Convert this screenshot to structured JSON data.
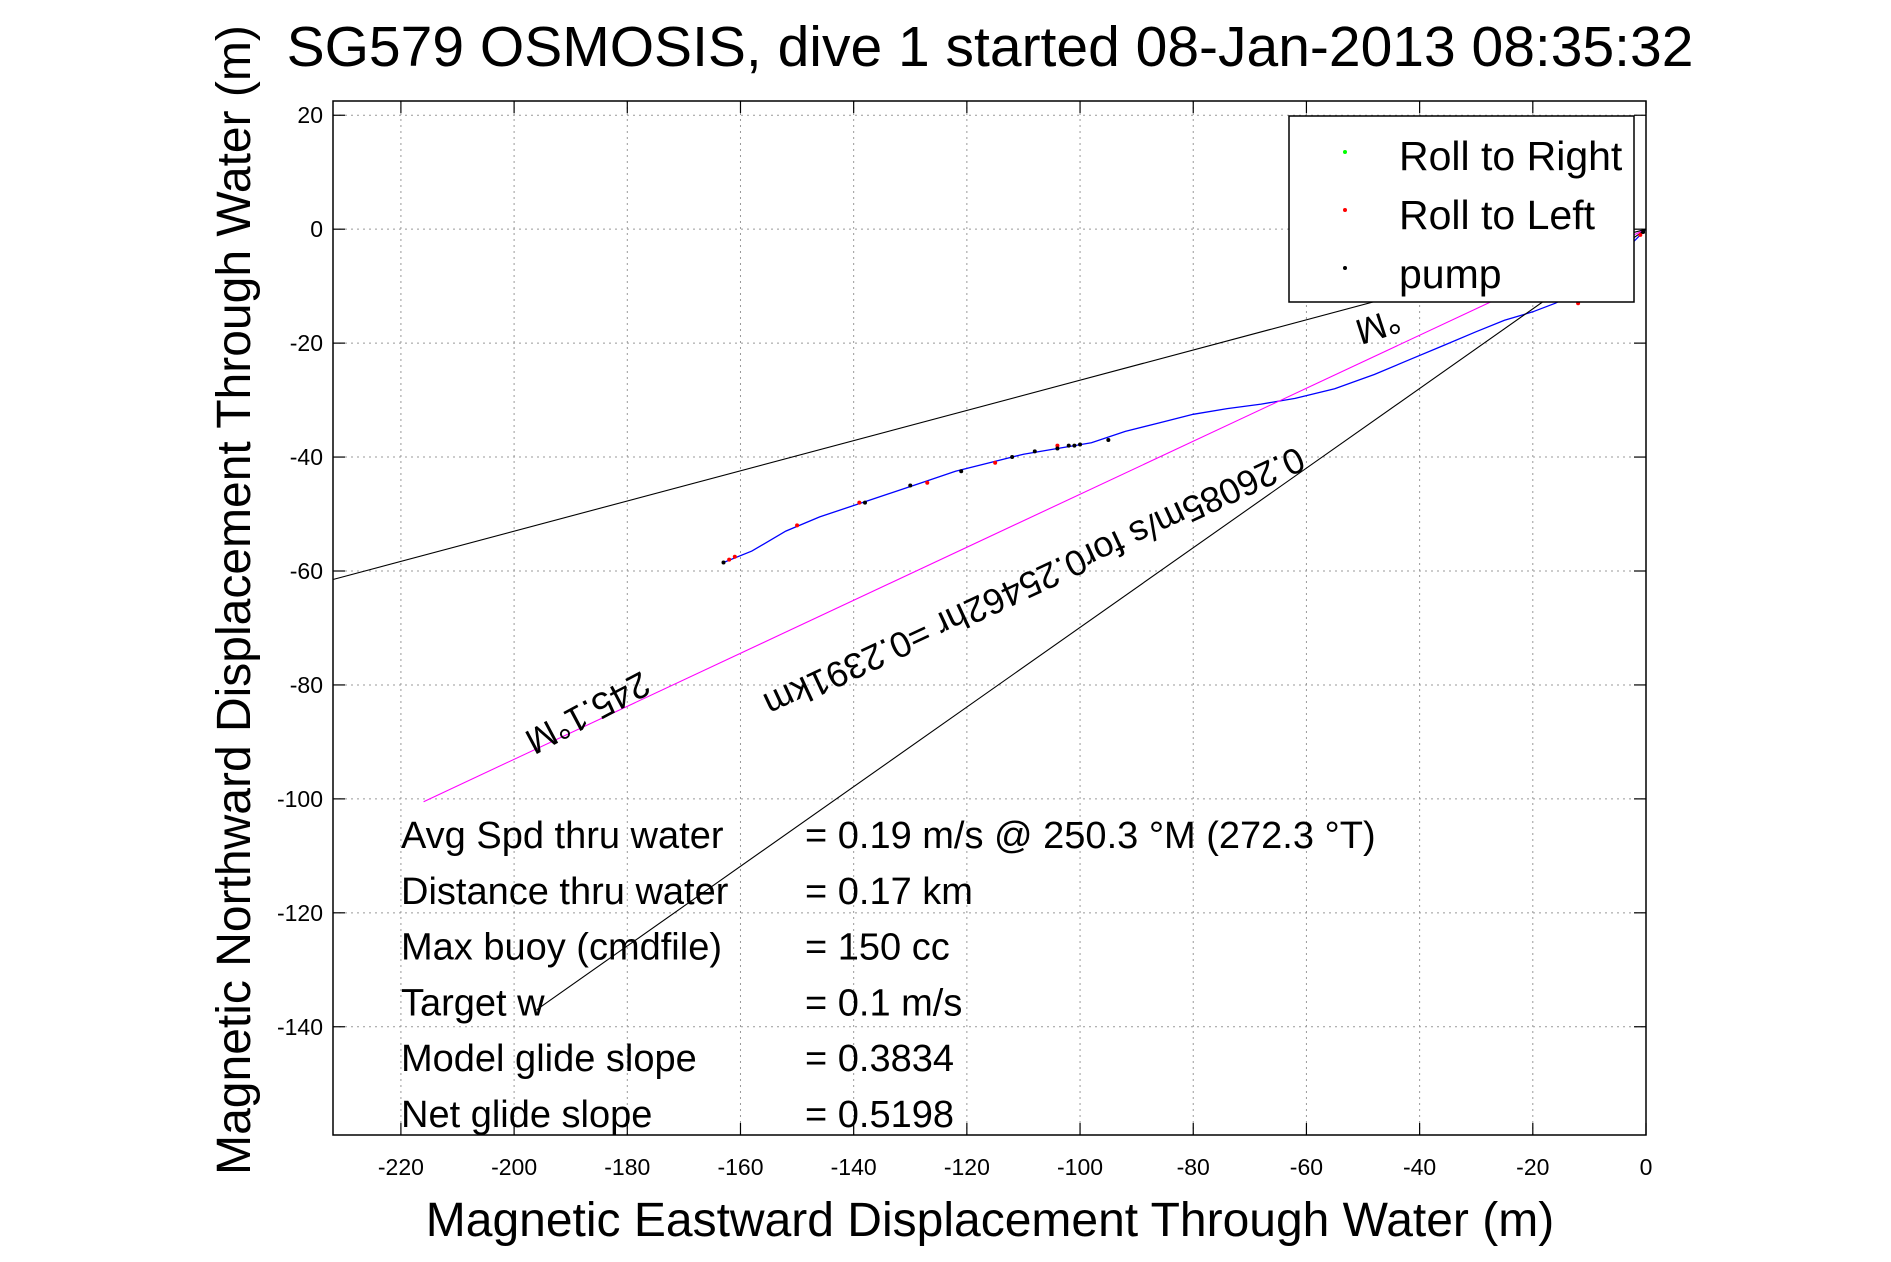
{
  "chart_data": {
    "type": "line",
    "title": "SG579 OSMOSIS, dive 1 started 08-Jan-2013 08:35:32",
    "xlabel": "Magnetic Eastward Displacement Through Water (m)",
    "ylabel": "Magnetic Northward Displacement Through Water (m)",
    "xlim": [
      -232,
      0
    ],
    "ylim": [
      -159,
      22.5
    ],
    "xticks": [
      -220,
      -200,
      -180,
      -160,
      -140,
      -120,
      -100,
      -80,
      -60,
      -40,
      -20,
      0
    ],
    "yticks": [
      20,
      0,
      -20,
      -40,
      -60,
      -80,
      -100,
      -120,
      -140
    ],
    "grid": true,
    "legend_position": "top-right",
    "legend": [
      {
        "label": "Roll to Right",
        "color": "#00ff00"
      },
      {
        "label": "Roll to Left",
        "color": "#ff0000"
      },
      {
        "label": "pump",
        "color": "#000000"
      }
    ],
    "series": [
      {
        "style": "track",
        "color": "#0000ff",
        "points": [
          [
            0,
            0
          ],
          [
            -2,
            -2
          ],
          [
            -4,
            -4
          ],
          [
            -6,
            -6
          ],
          [
            -9,
            -8.5
          ],
          [
            -12,
            -11
          ],
          [
            -16,
            -13
          ],
          [
            -20,
            -14.5
          ],
          [
            -25,
            -16
          ],
          [
            -30,
            -18
          ],
          [
            -36,
            -20.5
          ],
          [
            -42,
            -23
          ],
          [
            -48,
            -25.5
          ],
          [
            -55,
            -28
          ],
          [
            -62,
            -29.7
          ],
          [
            -68,
            -30.7
          ],
          [
            -74,
            -31.5
          ],
          [
            -80,
            -32.5
          ],
          [
            -86,
            -34
          ],
          [
            -92,
            -35.5
          ],
          [
            -98,
            -37.5
          ],
          [
            -104,
            -38.5
          ],
          [
            -110,
            -39.5
          ],
          [
            -116,
            -41
          ],
          [
            -122,
            -42.5
          ],
          [
            -128,
            -44.5
          ],
          [
            -134,
            -46.5
          ],
          [
            -140,
            -48.5
          ],
          [
            -146,
            -50.5
          ],
          [
            -152,
            -53
          ],
          [
            -158,
            -56.5
          ],
          [
            -163,
            -58.5
          ]
        ]
      },
      {
        "style": "line",
        "color": "#ff00ff",
        "points": [
          [
            0,
            0
          ],
          [
            -216,
            -100.5
          ]
        ]
      },
      {
        "style": "line",
        "color": "#000000",
        "points": [
          [
            0,
            0
          ],
          [
            -232,
            -61.5
          ]
        ]
      },
      {
        "style": "line",
        "color": "#000000",
        "points": [
          [
            0,
            0
          ],
          [
            -196,
            -137
          ]
        ]
      }
    ],
    "markers": [
      {
        "series": "Roll to Left",
        "color": "#ff0000",
        "points": [
          [
            -162,
            -58
          ],
          [
            -161,
            -57.5
          ],
          [
            -150,
            -52
          ],
          [
            -139,
            -48
          ],
          [
            -127,
            -44.5
          ],
          [
            -115,
            -41
          ],
          [
            -104,
            -38
          ],
          [
            -12,
            -13
          ],
          [
            -4,
            -4
          ],
          [
            -1,
            -1
          ]
        ]
      },
      {
        "series": "pump",
        "color": "#000000",
        "points": [
          [
            -163,
            -58.5
          ],
          [
            -138,
            -48
          ],
          [
            -130,
            -45
          ],
          [
            -121,
            -42.5
          ],
          [
            -112,
            -40
          ],
          [
            -108,
            -39
          ],
          [
            -104,
            -38.5
          ],
          [
            -102,
            -38
          ],
          [
            -101,
            -38
          ],
          [
            -100,
            -37.8
          ],
          [
            -95,
            -37
          ],
          [
            -0.5,
            -0.5
          ]
        ]
      }
    ],
    "annotations": [
      {
        "text": "245.1°M",
        "x": -188,
        "y": -83,
        "rotation": 152
      },
      {
        "text": "0.26085m/s for0.25462hr =0.2391km",
        "x": -109,
        "y": -60,
        "rotation": 155
      },
      {
        "text": "°M",
        "x": -48,
        "y": -15,
        "rotation": 162
      }
    ],
    "stats": [
      {
        "label": "Avg Spd thru water",
        "value": "=  0.19 m/s @ 250.3 °M (272.3 °T)"
      },
      {
        "label": "Distance thru water",
        "value": "=  0.17 km"
      },
      {
        "label": "Max buoy (cmdfile)",
        "value": "= 150 cc"
      },
      {
        "label": "Target w",
        "value": "= 0.1 m/s"
      },
      {
        "label": "Model glide slope",
        "value": "= 0.3834"
      },
      {
        "label": "Net glide slope",
        "value": "= 0.5198"
      }
    ]
  }
}
